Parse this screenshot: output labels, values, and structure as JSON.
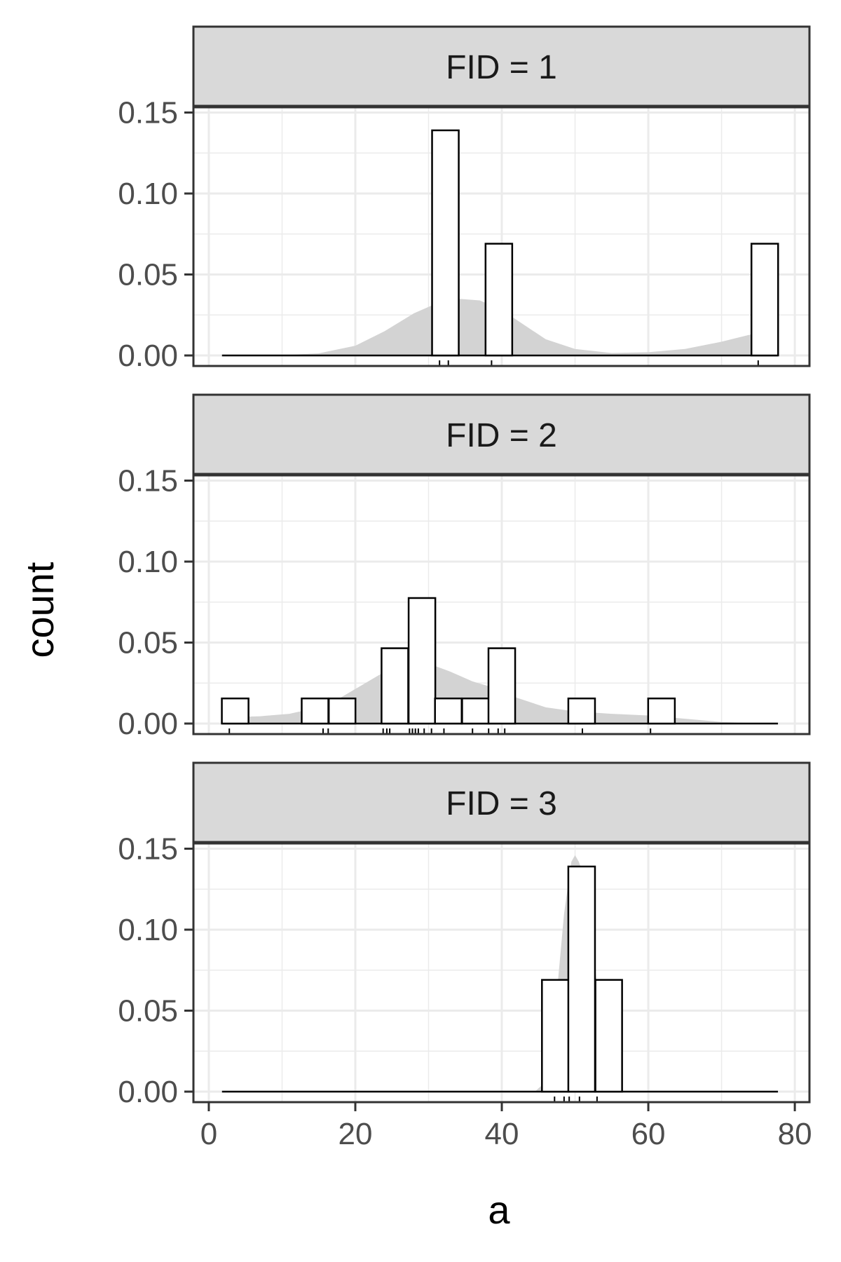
{
  "chart_data": {
    "type": "bar",
    "xlabel": "a",
    "ylabel": "count",
    "xlim": [
      0,
      80
    ],
    "ylim": [
      0,
      0.15
    ],
    "x_ticks": [
      "0",
      "20",
      "40",
      "60",
      "80"
    ],
    "y_ticks": [
      "0.00",
      "0.05",
      "0.10",
      "0.15"
    ],
    "bin_width": 3.64,
    "grid": true,
    "colors": {
      "density_fill": "#d3d3d3",
      "bar_fill": "#ffffff",
      "bar_stroke": "#000000",
      "strip_fill": "#d9d9d9",
      "grid": "#ebebeb"
    },
    "panels": [
      {
        "strip": "FID = 1",
        "bars": [
          {
            "x": 32.3,
            "value": 0.139
          },
          {
            "x": 39.6,
            "value": 0.069
          },
          {
            "x": 75.9,
            "value": 0.069
          }
        ],
        "density": [
          [
            2,
            0.0
          ],
          [
            10,
            0.0002
          ],
          [
            15,
            0.0013
          ],
          [
            20,
            0.006
          ],
          [
            24,
            0.015
          ],
          [
            28,
            0.026
          ],
          [
            31,
            0.032
          ],
          [
            34,
            0.035
          ],
          [
            37,
            0.034
          ],
          [
            40,
            0.028
          ],
          [
            43,
            0.019
          ],
          [
            46,
            0.01
          ],
          [
            50,
            0.004
          ],
          [
            55,
            0.0015
          ],
          [
            60,
            0.002
          ],
          [
            65,
            0.004
          ],
          [
            70,
            0.0085
          ],
          [
            74,
            0.013
          ],
          [
            75.2,
            0.013
          ]
        ],
        "rug": [
          31.5,
          32.7,
          38.6,
          75
        ]
      },
      {
        "strip": "FID = 2",
        "bars": [
          {
            "x": 3.6,
            "value": 0.0155
          },
          {
            "x": 14.5,
            "value": 0.0155
          },
          {
            "x": 18.2,
            "value": 0.0155
          },
          {
            "x": 25.4,
            "value": 0.0465
          },
          {
            "x": 29.1,
            "value": 0.0775
          },
          {
            "x": 32.7,
            "value": 0.0155
          },
          {
            "x": 36.4,
            "value": 0.0155
          },
          {
            "x": 40,
            "value": 0.0465
          },
          {
            "x": 50.9,
            "value": 0.0155
          },
          {
            "x": 61.8,
            "value": 0.0155
          }
        ],
        "density": [
          [
            3,
            0.004
          ],
          [
            7,
            0.0045
          ],
          [
            11,
            0.006
          ],
          [
            15,
            0.01
          ],
          [
            18,
            0.016
          ],
          [
            21,
            0.024
          ],
          [
            24,
            0.032
          ],
          [
            26,
            0.036
          ],
          [
            28,
            0.038
          ],
          [
            30,
            0.037
          ],
          [
            33,
            0.032
          ],
          [
            36,
            0.026
          ],
          [
            39,
            0.022
          ],
          [
            42,
            0.016
          ],
          [
            46,
            0.01
          ],
          [
            50,
            0.0075
          ],
          [
            55,
            0.006
          ],
          [
            60,
            0.005
          ],
          [
            65,
            0.003
          ],
          [
            70,
            0.001
          ],
          [
            75,
            0.0002
          ],
          [
            77.5,
            0.0
          ]
        ],
        "rug": [
          2.8,
          15.6,
          16.3,
          23.8,
          24.3,
          24.7,
          27.4,
          27.8,
          28.2,
          28.6,
          29.4,
          30.4,
          32.1,
          36,
          38.2,
          39.5,
          40.4,
          51,
          60.3
        ]
      },
      {
        "strip": "FID = 3",
        "bars": [
          {
            "x": 47.3,
            "value": 0.069
          },
          {
            "x": 50.9,
            "value": 0.139
          },
          {
            "x": 54.6,
            "value": 0.069
          }
        ],
        "density": [
          [
            44.5,
            0.0
          ],
          [
            45.5,
            0.004
          ],
          [
            46.5,
            0.02
          ],
          [
            47.5,
            0.06
          ],
          [
            48.5,
            0.11
          ],
          [
            49.5,
            0.142
          ],
          [
            50,
            0.146
          ],
          [
            50.5,
            0.142
          ],
          [
            51.5,
            0.13
          ],
          [
            52.5,
            0.09
          ],
          [
            53.5,
            0.04
          ],
          [
            54.5,
            0.0
          ]
        ],
        "rug": [
          47.2,
          48.5,
          49.2,
          50.6,
          53
        ]
      }
    ]
  }
}
